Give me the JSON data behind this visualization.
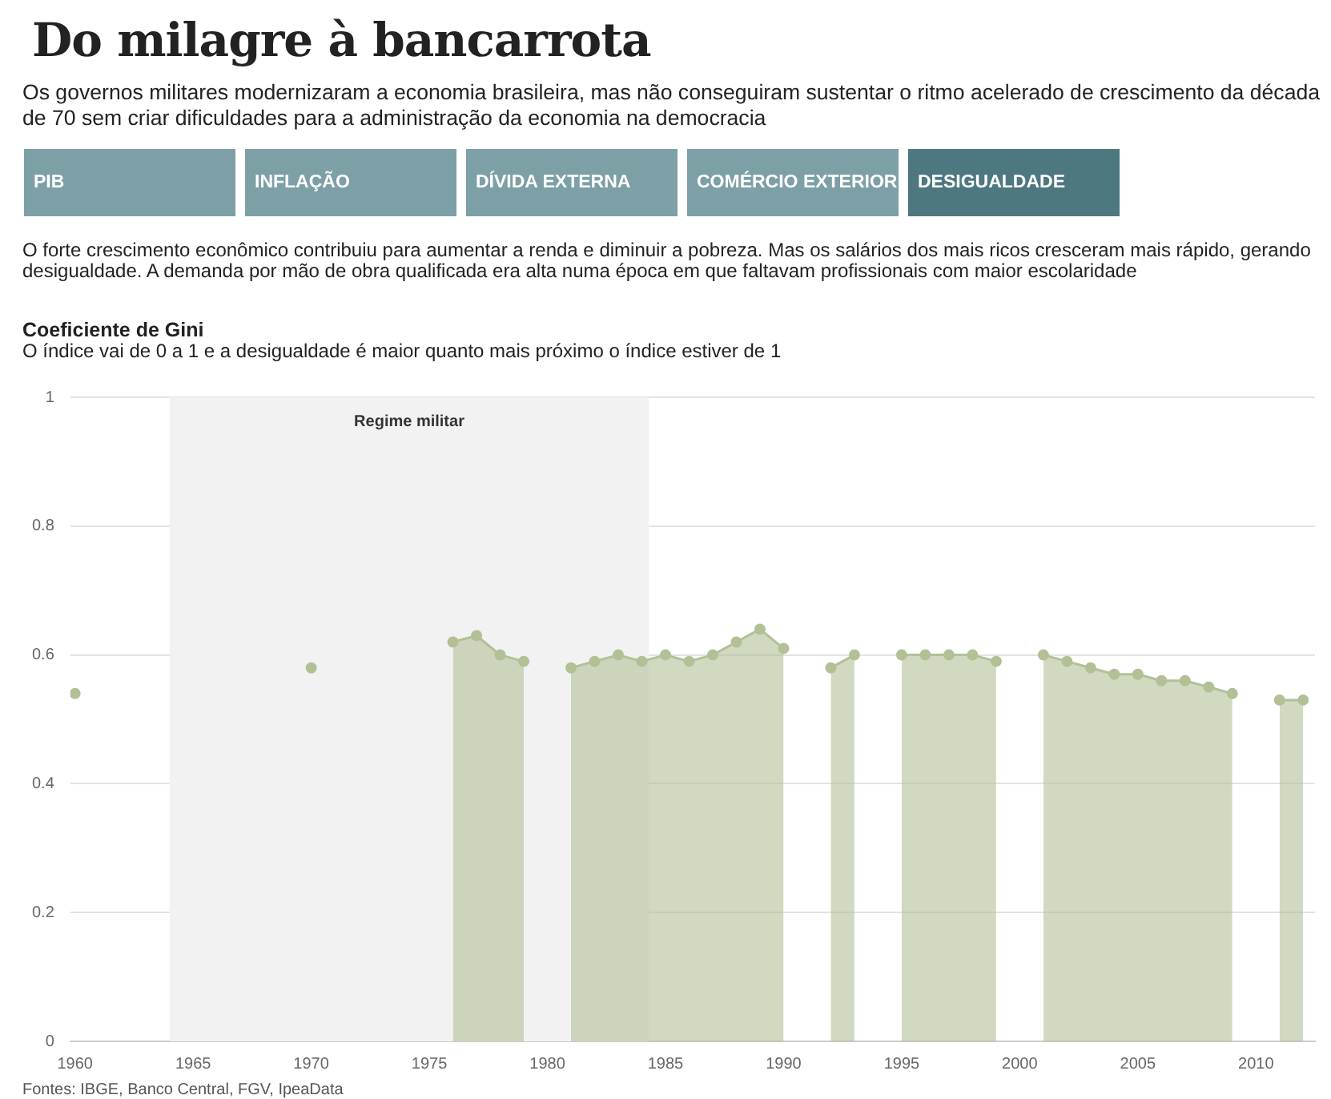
{
  "chart_data": {
    "type": "area",
    "title": "Do milagre à bancarrota",
    "subtitle": "Os governos militares modernizaram a economia brasileira, mas não conseguiram sustentar o ritmo acelerado de crescimento da década de 70 sem criar dificuldades para a administração da economia na democracia",
    "annotations": [
      "PIB",
      "INFLAÇÃO",
      "DÍVIDA EXTERNA",
      "COMÉRCIO EXTERIOR",
      "DESIGUALDADE",
      "O forte crescimento econômico contribuiu para aumentar a renda e diminuir a pobreza. Mas os salários dos mais ricos cresceram mais rápido, gerando desigualdade. A demanda por mão de obra qualificada era alta numa época em que faltavam profissionais com maior escolaridade",
      "O índice vai de 0 a 1 e a desigualdade é maior quanto mais próximo o índice estiver de 1",
      "Fontes: IBGE, Banco Central, FGV, IpeaData"
    ],
    "ylabel": "Coeficiente de Gini",
    "x": [
      1976,
      1977,
      1978,
      1979,
      1980,
      1981,
      1982,
      1983,
      1984,
      1985,
      1986,
      1987,
      1988,
      1989,
      1990,
      1991,
      1992,
      1993,
      1994,
      1995,
      1996,
      1997,
      1998,
      1999,
      2000,
      2001,
      2002,
      2003,
      2004,
      2005,
      2006,
      2007,
      2008,
      2009,
      2010,
      2011,
      2012
    ],
    "series": [
      {
        "type": "scatter",
        "x": [
          1960,
          1970
        ],
        "color": "#b3c096",
        "values": [
          0.54,
          0.58
        ]
      },
      {
        "color": "#b3c096",
        "values": [
          0.62,
          0.63,
          0.6,
          0.59,
          null,
          0.58,
          0.59,
          0.6,
          0.59,
          0.6,
          0.59,
          0.6,
          0.62,
          0.64,
          0.61,
          null,
          0.58,
          0.6,
          null,
          0.6,
          0.6,
          0.6,
          0.6,
          0.59,
          null,
          0.6,
          0.59,
          0.58,
          0.57,
          0.57,
          0.56,
          0.56,
          0.55,
          0.54,
          null,
          0.53,
          0.53
        ]
      }
    ],
    "xlim": [
      1959.8,
      2012.5
    ],
    "xticks": [
      1960,
      1965,
      1970,
      1975,
      1980,
      1985,
      1990,
      1995,
      2000,
      2005,
      2010
    ],
    "ylim": [
      0,
      1
    ],
    "yticks": [
      0,
      0.2,
      0.4,
      0.6,
      0.8,
      {
        "value": 1,
        "label": "1"
      }
    ],
    "bands": [
      {
        "axis": "x",
        "from": 1964,
        "to": 1984.3,
        "label": "Regime militar",
        "color": "#f2f2f2"
      }
    ],
    "grid": "y",
    "legend": false,
    "marker": "circle"
  }
}
